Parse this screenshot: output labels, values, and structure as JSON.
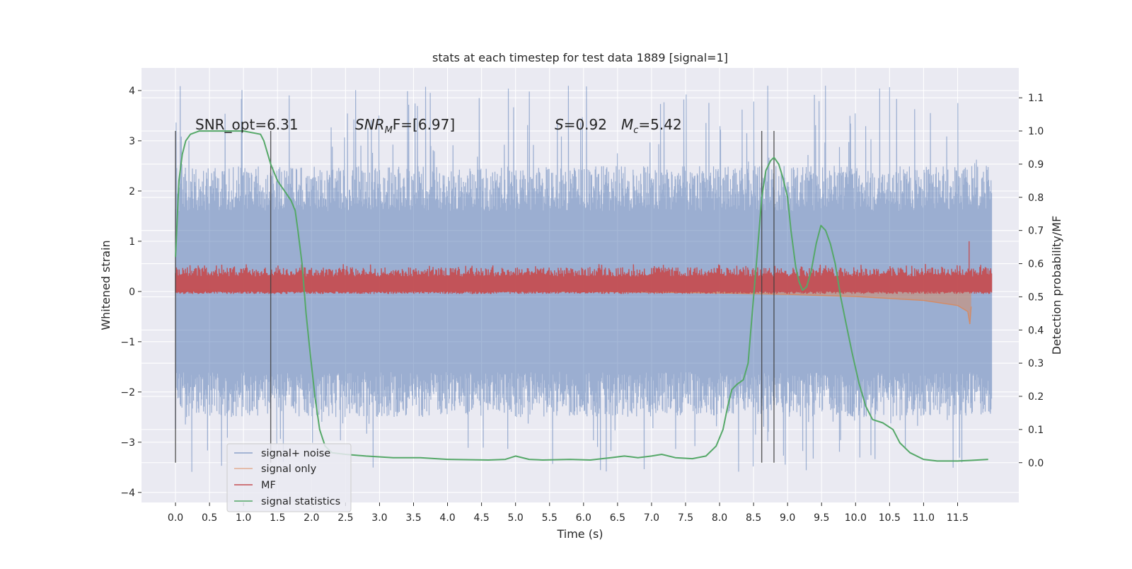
{
  "chart_data": {
    "type": "line",
    "title": "stats at each timestep for test data 1889 [signal=1]",
    "xlabel": "Time (s)",
    "ylabel": "Whitened strain",
    "ylabel_right": "Detection probability/MF",
    "xlim": [
      -0.5,
      12.4
    ],
    "ylim": [
      -4.2,
      4.45
    ],
    "ylim_right": [
      -0.12,
      1.19
    ],
    "x_ticks": [
      0.0,
      0.5,
      1.0,
      1.5,
      2.0,
      2.5,
      3.0,
      3.5,
      4.0,
      4.5,
      5.0,
      5.5,
      6.0,
      6.5,
      7.0,
      7.5,
      8.0,
      8.5,
      9.0,
      9.5,
      10.0,
      10.5,
      11.0,
      11.5
    ],
    "x_tick_labels": [
      "0.0",
      "0.5",
      "1.0",
      "1.5",
      "2.0",
      "2.5",
      "3.0",
      "3.5",
      "4.0",
      "4.5",
      "5.0",
      "5.5",
      "6.0",
      "6.5",
      "7.0",
      "7.5",
      "8.0",
      "8.5",
      "9.0",
      "9.5",
      "10.0",
      "10.5",
      "11.0",
      "11.5"
    ],
    "y_ticks": [
      -4,
      -3,
      -2,
      -1,
      0,
      1,
      2,
      3,
      4
    ],
    "y_tick_labels": [
      "−4",
      "−3",
      "−2",
      "−1",
      "0",
      "1",
      "2",
      "3",
      "4"
    ],
    "y_right_ticks": [
      0.0,
      0.1,
      0.2,
      0.3,
      0.4,
      0.5,
      0.6,
      0.7,
      0.8,
      0.9,
      1.0,
      1.1
    ],
    "y_right_tick_labels": [
      "0.0",
      "0.1",
      "0.2",
      "0.3",
      "0.4",
      "0.5",
      "0.6",
      "0.7",
      "0.8",
      "0.9",
      "1.0",
      "1.1"
    ],
    "grid": true,
    "legend_position": "lower-left",
    "annotations": {
      "snr_opt": "SNR_opt=6.31",
      "snr_mf_main": "SNR",
      "snr_mf_sub": "M",
      "snr_mf_rest": "F=[6.97]",
      "s_main": "S",
      "s_rest": "=0.92",
      "mc_main": "M",
      "mc_sub": "c",
      "mc_rest": "=5.42"
    },
    "vertical_markers": [
      0.0,
      1.4,
      8.62,
      8.8
    ],
    "series": [
      {
        "name": "signal+ noise",
        "color": "#4c72b0",
        "axis": "left",
        "t": [
          0.0,
          12.0
        ],
        "band": [
          -1.5,
          1.5
        ],
        "spike_range": [
          -3.6,
          4.1
        ]
      },
      {
        "name": "signal only",
        "color": "#dd8452",
        "axis": "left",
        "points": [
          [
            0.0,
            0.02
          ],
          [
            3.0,
            0.01
          ],
          [
            6.0,
            0.0
          ],
          [
            8.0,
            -0.03
          ],
          [
            9.0,
            -0.06
          ],
          [
            10.0,
            -0.1
          ],
          [
            11.0,
            -0.18
          ],
          [
            11.5,
            -0.28
          ],
          [
            11.65,
            -0.4
          ],
          [
            11.68,
            -0.65
          ],
          [
            11.7,
            -0.3
          ]
        ]
      },
      {
        "name": "MF",
        "color": "#c44e52",
        "axis": "left",
        "t": [
          0.0,
          12.0
        ],
        "baseline": [
          0.0,
          0.15
        ],
        "peak": [
          11.67,
          1.0
        ]
      },
      {
        "name": "signal statistics",
        "color": "#55a868",
        "axis": "right",
        "points": [
          [
            0.0,
            0.62
          ],
          [
            0.05,
            0.85
          ],
          [
            0.1,
            0.93
          ],
          [
            0.15,
            0.97
          ],
          [
            0.22,
            0.99
          ],
          [
            0.35,
            1.0
          ],
          [
            1.0,
            1.0
          ],
          [
            1.25,
            0.99
          ],
          [
            1.3,
            0.97
          ],
          [
            1.4,
            0.9
          ],
          [
            1.5,
            0.85
          ],
          [
            1.6,
            0.82
          ],
          [
            1.7,
            0.79
          ],
          [
            1.76,
            0.76
          ],
          [
            1.8,
            0.7
          ],
          [
            1.86,
            0.6
          ],
          [
            1.92,
            0.45
          ],
          [
            1.97,
            0.35
          ],
          [
            2.05,
            0.2
          ],
          [
            2.12,
            0.1
          ],
          [
            2.2,
            0.05
          ],
          [
            2.3,
            0.03
          ],
          [
            2.5,
            0.025
          ],
          [
            2.8,
            0.02
          ],
          [
            3.2,
            0.015
          ],
          [
            3.6,
            0.015
          ],
          [
            4.0,
            0.01
          ],
          [
            4.6,
            0.008
          ],
          [
            4.85,
            0.01
          ],
          [
            5.0,
            0.02
          ],
          [
            5.2,
            0.01
          ],
          [
            5.4,
            0.008
          ],
          [
            5.8,
            0.01
          ],
          [
            6.1,
            0.008
          ],
          [
            6.4,
            0.015
          ],
          [
            6.6,
            0.02
          ],
          [
            6.8,
            0.015
          ],
          [
            7.0,
            0.02
          ],
          [
            7.15,
            0.025
          ],
          [
            7.35,
            0.015
          ],
          [
            7.6,
            0.012
          ],
          [
            7.8,
            0.02
          ],
          [
            7.95,
            0.05
          ],
          [
            8.05,
            0.1
          ],
          [
            8.12,
            0.17
          ],
          [
            8.18,
            0.22
          ],
          [
            8.25,
            0.235
          ],
          [
            8.35,
            0.25
          ],
          [
            8.42,
            0.3
          ],
          [
            8.48,
            0.45
          ],
          [
            8.55,
            0.62
          ],
          [
            8.62,
            0.8
          ],
          [
            8.68,
            0.88
          ],
          [
            8.75,
            0.91
          ],
          [
            8.8,
            0.92
          ],
          [
            8.87,
            0.9
          ],
          [
            8.93,
            0.86
          ],
          [
            9.0,
            0.8
          ],
          [
            9.05,
            0.7
          ],
          [
            9.12,
            0.59
          ],
          [
            9.17,
            0.545
          ],
          [
            9.22,
            0.52
          ],
          [
            9.28,
            0.53
          ],
          [
            9.35,
            0.58
          ],
          [
            9.42,
            0.66
          ],
          [
            9.49,
            0.715
          ],
          [
            9.56,
            0.7
          ],
          [
            9.63,
            0.66
          ],
          [
            9.7,
            0.6
          ],
          [
            9.78,
            0.5
          ],
          [
            9.86,
            0.42
          ],
          [
            9.95,
            0.33
          ],
          [
            10.05,
            0.24
          ],
          [
            10.15,
            0.17
          ],
          [
            10.25,
            0.13
          ],
          [
            10.4,
            0.12
          ],
          [
            10.55,
            0.1
          ],
          [
            10.65,
            0.06
          ],
          [
            10.8,
            0.03
          ],
          [
            11.0,
            0.01
          ],
          [
            11.2,
            0.005
          ],
          [
            11.5,
            0.005
          ],
          [
            11.7,
            0.007
          ],
          [
            11.95,
            0.01
          ]
        ]
      }
    ]
  }
}
